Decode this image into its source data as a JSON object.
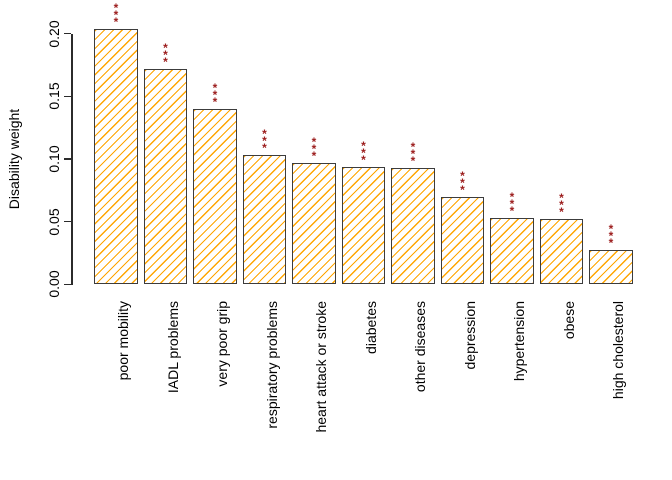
{
  "figure": {
    "background_color": "#ffffff",
    "text_color": "#000000"
  },
  "chart_data": {
    "type": "bar",
    "title": "",
    "xlabel": "",
    "ylabel": "Disability weight",
    "ylim": [
      0,
      0.2
    ],
    "yticks": [
      0.0,
      0.05,
      0.1,
      0.15,
      0.2
    ],
    "ytick_labels": [
      "0.00",
      "0.05",
      "0.10",
      "0.15",
      "0.20"
    ],
    "categories": [
      "poor mobility",
      "IADL problems",
      "very poor grip",
      "respiratory problems",
      "heart attack or stroke",
      "diabetes",
      "other diseases",
      "depression",
      "hypertension",
      "obese",
      "high cholesterol"
    ],
    "values": [
      0.204,
      0.172,
      0.14,
      0.103,
      0.097,
      0.094,
      0.093,
      0.07,
      0.053,
      0.052,
      0.027
    ],
    "significance": [
      "***",
      "***",
      "***",
      "***",
      "***",
      "***",
      "***",
      "***",
      "***",
      "***",
      "***"
    ],
    "grid": false,
    "legend": null,
    "style": {
      "bar_fill": "#ffffff",
      "hatch_color": "#FFA500",
      "hatch_angle": 45,
      "bar_border_color": "#3C3C3C",
      "axis_color": "#2B2B2B",
      "significance_color": "#9C1D1D",
      "tick_label_orientation": "vertical",
      "x_label_orientation": "vertical"
    }
  }
}
